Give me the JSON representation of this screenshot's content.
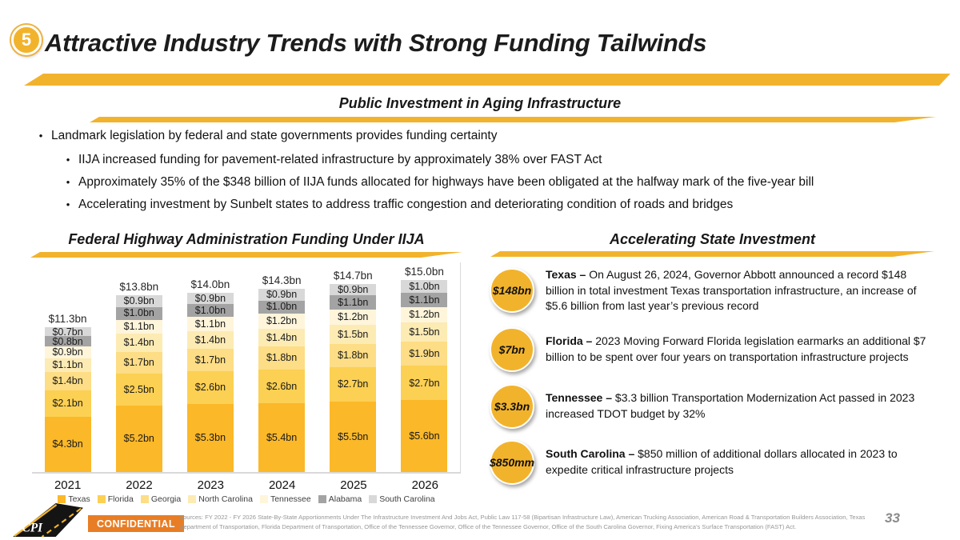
{
  "header": {
    "badge": "5",
    "title": "Attractive Industry Trends with Strong Funding Tailwinds"
  },
  "section": {
    "title": "Public Investment in Aging Infrastructure"
  },
  "bullets": {
    "main": "Landmark legislation by federal and state governments provides funding certainty",
    "subs": [
      "IIJA increased funding for pavement-related infrastructure by approximately 38% over FAST Act",
      "Approximately 35% of the $348 billion of IIJA funds allocated for highways have been obligated at the halfway mark of the five-year bill",
      "Accelerating investment by Sunbelt states to address traffic congestion and deteriorating condition of roads and bridges"
    ]
  },
  "chart": {
    "title": "Federal Highway Administration Funding Under IIJA",
    "chart_data": {
      "type": "bar",
      "stacked": true,
      "categories": [
        "2021",
        "2022",
        "2023",
        "2024",
        "2025",
        "2026"
      ],
      "series": [
        {
          "name": "Texas",
          "color": "#FBB828",
          "values": [
            4.3,
            5.2,
            5.3,
            5.4,
            5.5,
            5.6
          ]
        },
        {
          "name": "Florida",
          "color": "#FCD053",
          "values": [
            2.1,
            2.5,
            2.6,
            2.6,
            2.7,
            2.7
          ]
        },
        {
          "name": "Georgia",
          "color": "#FDDD85",
          "values": [
            1.4,
            1.7,
            1.7,
            1.8,
            1.8,
            1.9
          ]
        },
        {
          "name": "North Carolina",
          "color": "#FDEBB4",
          "values": [
            1.1,
            1.4,
            1.4,
            1.4,
            1.5,
            1.5
          ]
        },
        {
          "name": "Tennessee",
          "color": "#FEF5DB",
          "values": [
            0.9,
            1.1,
            1.1,
            1.2,
            1.2,
            1.2
          ]
        },
        {
          "name": "Alabama",
          "color": "#A3A3A3",
          "values": [
            0.8,
            1.0,
            1.0,
            1.0,
            1.1,
            1.1
          ]
        },
        {
          "name": "South Carolina",
          "color": "#D8D8D8",
          "values": [
            0.7,
            0.9,
            0.9,
            0.9,
            0.9,
            1.0
          ]
        }
      ],
      "totals": [
        "$11.3bn",
        "$13.8bn",
        "$14.0bn",
        "$14.3bn",
        "$14.7bn",
        "$15.0bn"
      ],
      "value_suffix": "bn",
      "title": "Federal Highway Administration Funding Under IIJA",
      "xlabel": "",
      "ylabel": "",
      "ylim": [
        0,
        15.0
      ],
      "grid": false,
      "legend_position": "bottom"
    }
  },
  "state_investment": {
    "title": "Accelerating State Investment",
    "items": [
      {
        "badge": "$148bn",
        "state": "Texas –",
        "description": "On August 26, 2024, Governor Abbott announced a record $148 billion in total investment Texas transportation infrastructure, an increase of $5.6 billion from last year’s previous record"
      },
      {
        "badge": "$7bn",
        "state": "Florida –",
        "description": "2023 Moving Forward Florida legislation earmarks an additional $7 billion to be spent over four years on transportation infrastructure projects"
      },
      {
        "badge": "$3.3bn",
        "state": "Tennessee –",
        "description": "$3.3 billion Transportation Modernization Act passed in 2023 increased TDOT budget by 32%"
      },
      {
        "badge": "$850mm",
        "state": "South Carolina –",
        "description": "$850 million of additional dollars allocated in 2023 to expedite critical infrastructure projects"
      }
    ]
  },
  "footer": {
    "logo_text": "CPI",
    "confidential": "CONFIDENTIAL",
    "sources": "Sources:  FY 2022 - FY 2026 State-By-State Apportionments Under The Infrastructure Investment And Jobs Act, Public Law 117-58 (Bipartisan Infrastructure Law), American Trucking Association, American Road & Transportation Builders Association, Texas Department of Transportation, Florida Department of Transportation, Office of the Tennessee Governor, Office of the Tennessee Governor, Office of the South Carolina Governor, Fixing America’s Surface Transportation (FAST) Act.",
    "page_number": "33"
  },
  "colors": {
    "accent_gold": "#F2B32C",
    "confidential_orange": "#E87D25"
  }
}
